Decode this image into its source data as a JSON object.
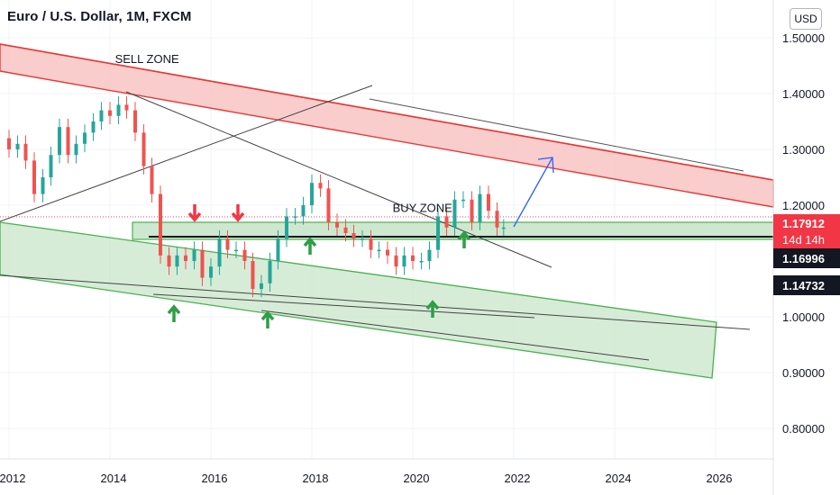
{
  "header": {
    "title": "Euro / U.S. Dollar, 1M, FXCM"
  },
  "currency_button": {
    "label": "USD"
  },
  "chart_data": {
    "type": "candlestick",
    "symbol": "Euro / U.S. Dollar",
    "interval": "1M",
    "source": "FXCM",
    "x_ticks": [
      "2012",
      "2014",
      "2016",
      "2018",
      "2020",
      "2022",
      "2024",
      "2026"
    ],
    "y_ticks": [
      "1.50000",
      "1.40000",
      "1.30000",
      "1.20000",
      "1.00000",
      "0.90000",
      "0.80000"
    ],
    "ylim": [
      0.74,
      1.53
    ],
    "xlim": [
      2012.0,
      2026.9
    ],
    "colors": {
      "up": "#26a69a",
      "down": "#ef5350",
      "sell_zone": "#f8bcbc",
      "buy_zone": "#c8e6c9",
      "projection": "#2962ff"
    },
    "closes": [
      [
        2012.0,
        1.3
      ],
      [
        2012.17,
        1.31
      ],
      [
        2012.33,
        1.28
      ],
      [
        2012.5,
        1.22
      ],
      [
        2012.67,
        1.25
      ],
      [
        2012.83,
        1.29
      ],
      [
        2013.0,
        1.34
      ],
      [
        2013.17,
        1.29
      ],
      [
        2013.33,
        1.31
      ],
      [
        2013.5,
        1.33
      ],
      [
        2013.67,
        1.35
      ],
      [
        2013.83,
        1.37
      ],
      [
        2014.0,
        1.36
      ],
      [
        2014.17,
        1.38
      ],
      [
        2014.33,
        1.37
      ],
      [
        2014.5,
        1.33
      ],
      [
        2014.67,
        1.27
      ],
      [
        2014.83,
        1.22
      ],
      [
        2015.0,
        1.11
      ],
      [
        2015.17,
        1.09
      ],
      [
        2015.33,
        1.11
      ],
      [
        2015.5,
        1.1
      ],
      [
        2015.67,
        1.12
      ],
      [
        2015.83,
        1.07
      ],
      [
        2016.0,
        1.09
      ],
      [
        2016.17,
        1.14
      ],
      [
        2016.33,
        1.12
      ],
      [
        2016.5,
        1.12
      ],
      [
        2016.67,
        1.1
      ],
      [
        2016.83,
        1.05
      ],
      [
        2017.0,
        1.06
      ],
      [
        2017.17,
        1.1
      ],
      [
        2017.33,
        1.14
      ],
      [
        2017.5,
        1.18
      ],
      [
        2017.67,
        1.18
      ],
      [
        2017.83,
        1.2
      ],
      [
        2018.0,
        1.24
      ],
      [
        2018.17,
        1.23
      ],
      [
        2018.33,
        1.17
      ],
      [
        2018.5,
        1.16
      ],
      [
        2018.67,
        1.15
      ],
      [
        2018.83,
        1.14
      ],
      [
        2019.0,
        1.14
      ],
      [
        2019.17,
        1.12
      ],
      [
        2019.33,
        1.12
      ],
      [
        2019.5,
        1.11
      ],
      [
        2019.67,
        1.09
      ],
      [
        2019.83,
        1.11
      ],
      [
        2020.0,
        1.1
      ],
      [
        2020.17,
        1.1
      ],
      [
        2020.33,
        1.12
      ],
      [
        2020.5,
        1.18
      ],
      [
        2020.67,
        1.16
      ],
      [
        2020.83,
        1.21
      ],
      [
        2021.0,
        1.21
      ],
      [
        2021.17,
        1.17
      ],
      [
        2021.33,
        1.22
      ],
      [
        2021.5,
        1.19
      ],
      [
        2021.67,
        1.16
      ],
      [
        2021.8,
        1.16
      ]
    ],
    "zones": [
      {
        "label": "SELL ZONE",
        "type": "descending-channel"
      },
      {
        "label": "BUY ZONE",
        "type": "horizontal-band",
        "range": [
          1.165,
          1.197
        ]
      }
    ],
    "price_tags": [
      {
        "value": "1.17912",
        "sub": "14d 14h",
        "color": "#f23645"
      },
      {
        "value": "1.16996",
        "color": "#131722"
      },
      {
        "value": "1.14732",
        "color": "#131722"
      }
    ],
    "annotations": [
      {
        "text": "SELL ZONE",
        "x": 2014.1,
        "y": 1.455
      },
      {
        "text": "BUY ZONE",
        "x": 2019.6,
        "y": 1.188
      }
    ]
  }
}
